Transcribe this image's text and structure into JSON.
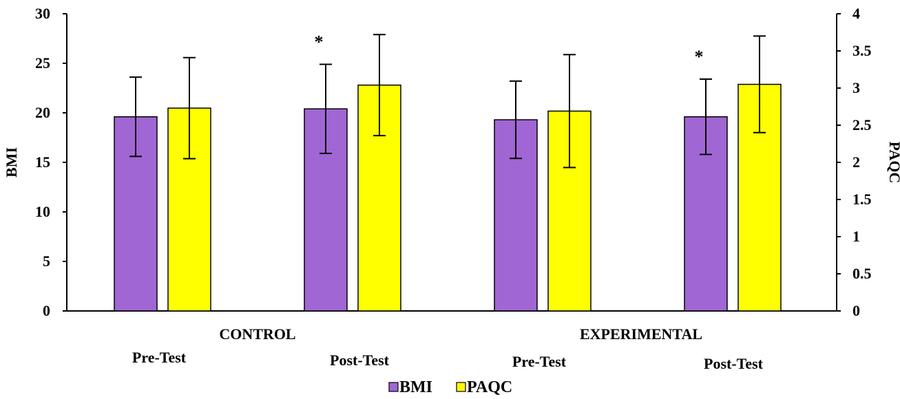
{
  "chart_data": {
    "type": "bar",
    "groups": [
      {
        "label": "CONTROL",
        "categories": [
          "Pre-Test",
          "Post-Test"
        ]
      },
      {
        "label": "EXPERIMENTAL",
        "categories": [
          "Pre-Test",
          "Post-Test"
        ]
      }
    ],
    "categories": [
      "Pre-Test",
      "Post-Test",
      "Pre-Test",
      "Post-Test"
    ],
    "series": [
      {
        "name": "BMI",
        "axis": "left",
        "color": "#a066d3",
        "values": [
          19.6,
          20.4,
          19.3,
          19.6
        ],
        "error": [
          4.0,
          4.5,
          3.9,
          3.8
        ],
        "significance": [
          "",
          "*",
          "",
          "*"
        ]
      },
      {
        "name": "PAQC",
        "axis": "right",
        "color": "#ffff00",
        "values": [
          2.73,
          3.04,
          2.69,
          3.05
        ],
        "error": [
          0.68,
          0.68,
          0.76,
          0.65
        ],
        "significance": [
          "",
          "",
          "",
          ""
        ]
      }
    ],
    "ylabel": "BMI",
    "y2label": "PAQC",
    "ylim": [
      0,
      30
    ],
    "y2lim": [
      0,
      4
    ],
    "yticks": [
      "0",
      "5",
      "10",
      "15",
      "20",
      "25",
      "30"
    ],
    "y2ticks": [
      "0",
      "0.5",
      "1",
      "1.5",
      "2",
      "2.5",
      "3",
      "3.5",
      "4"
    ],
    "grid": false,
    "legend": "bottom-center"
  }
}
